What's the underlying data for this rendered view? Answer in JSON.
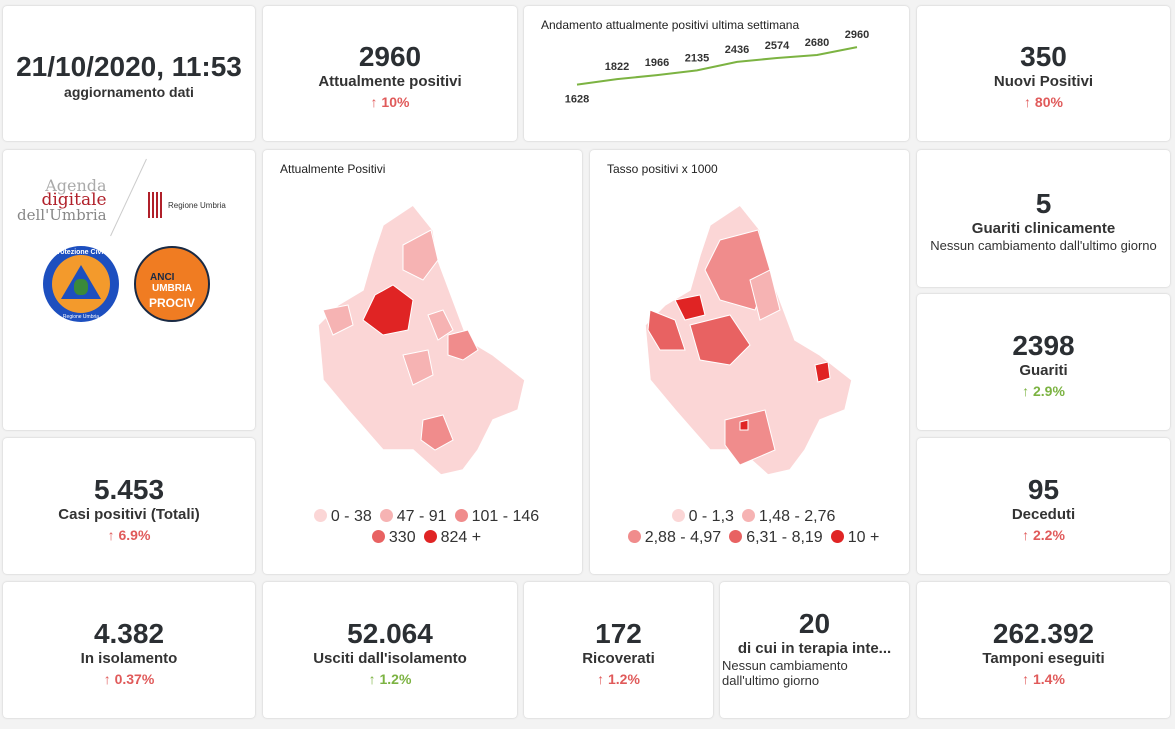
{
  "update": {
    "datetime": "21/10/2020, 11:53",
    "label": "aggiornamento dati"
  },
  "attualmente_positivi": {
    "value": "2960",
    "label": "Attualmente positivi",
    "change": "↑ 10%"
  },
  "chart_data": {
    "type": "line",
    "title": "Andamento attualmente positivi ultima settimana",
    "x": [
      1,
      2,
      3,
      4,
      5,
      6,
      7,
      8
    ],
    "values": [
      1628,
      1822,
      1966,
      2135,
      2436,
      2574,
      2680,
      2960
    ],
    "ylim": [
      1400,
      3000
    ],
    "color": "#7cb342",
    "grid": false
  },
  "nuovi_positivi": {
    "value": "350",
    "label": "Nuovi Positivi",
    "change": "↑ 80%"
  },
  "logos": {
    "agenda1": "Agenda",
    "agenda2": "digitale",
    "agenda3": "dell'Umbria",
    "regione": "Regione Umbria",
    "protezione": "Protezione Civile",
    "protezione_sub": "Regione Umbria",
    "anci1": "ANCI",
    "anci2": "UMBRIA",
    "anci3": "PROCIV"
  },
  "map1": {
    "title": "Attualmente Positivi",
    "legend": [
      {
        "label": "0 - 38",
        "color": "#fbd6d6"
      },
      {
        "label": "47 - 91",
        "color": "#f6b3b3"
      },
      {
        "label": "101 - 146",
        "color": "#f08c8c"
      },
      {
        "label": "330",
        "color": "#e86262"
      },
      {
        "label": "824 +",
        "color": "#e02424"
      }
    ]
  },
  "map2": {
    "title": "Tasso positivi x 1000",
    "legend": [
      {
        "label": "0 - 1,3",
        "color": "#fbd6d6"
      },
      {
        "label": "1,48 - 2,76",
        "color": "#f6b3b3"
      },
      {
        "label": "2,88 - 4,97",
        "color": "#f08c8c"
      },
      {
        "label": "6,31 - 8,19",
        "color": "#e86262"
      },
      {
        "label": "10 +",
        "color": "#e02424"
      }
    ]
  },
  "guariti_clinicamente": {
    "value": "5",
    "label": "Guariti clinicamente",
    "note": "Nessun cambiamento dall'ultimo giorno"
  },
  "guariti": {
    "value": "2398",
    "label": "Guariti",
    "change": "↑ 2.9%"
  },
  "casi_totali": {
    "value": "5.453",
    "label": "Casi positivi (Totali)",
    "change": "↑ 6.9%"
  },
  "deceduti": {
    "value": "95",
    "label": "Deceduti",
    "change": "↑ 2.2%"
  },
  "isolamento": {
    "value": "4.382",
    "label": "In isolamento",
    "change": "↑ 0.37%"
  },
  "usciti": {
    "value": "52.064",
    "label": "Usciti dall'isolamento",
    "change": "↑ 1.2%"
  },
  "ricoverati": {
    "value": "172",
    "label": "Ricoverati",
    "change": "↑ 1.2%"
  },
  "terapia_intensiva": {
    "value": "20",
    "label": "di cui in terapia inte...",
    "note": "Nessun cambiamento dall'ultimo giorno"
  },
  "tamponi": {
    "value": "262.392",
    "label": "Tamponi eseguiti",
    "change": "↑ 1.4%"
  }
}
